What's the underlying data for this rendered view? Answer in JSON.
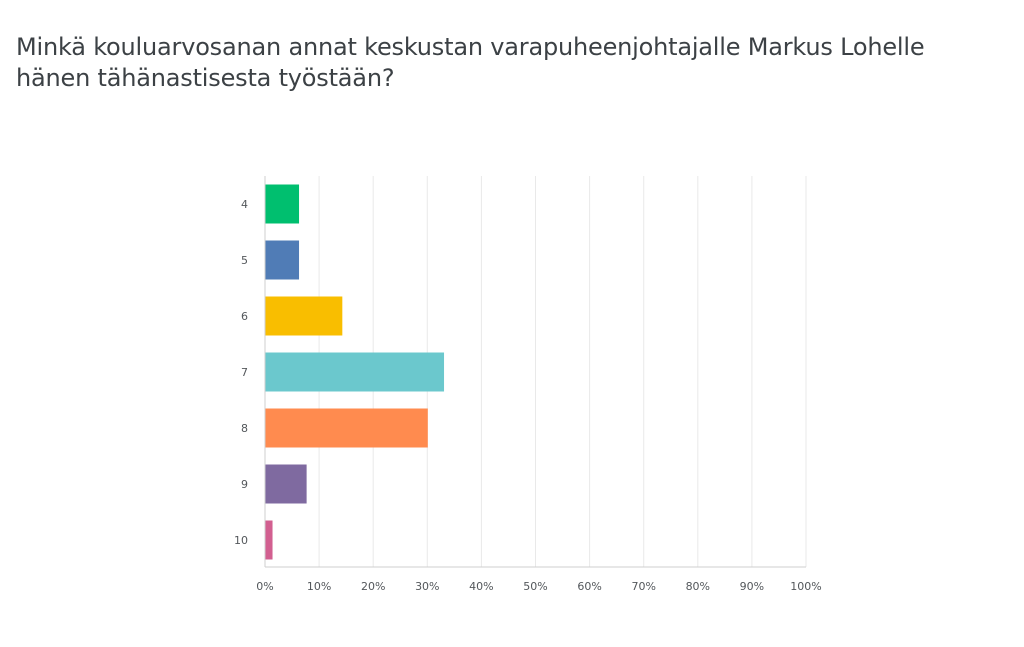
{
  "question": {
    "line1": "Minkä kouluarvosanan annat keskustan varapuheenjohtajalle Markus Lohelle",
    "line2": "hänen tähänastisesta työstään?"
  },
  "chart_data": {
    "type": "bar",
    "orientation": "horizontal",
    "categories": [
      "4",
      "5",
      "6",
      "7",
      "8",
      "9",
      "10"
    ],
    "values": [
      6.2,
      6.2,
      14.2,
      33.0,
      30.0,
      7.6,
      1.3
    ],
    "unit": "%",
    "xlim": [
      0,
      100
    ],
    "x_ticks": [
      "0%",
      "10%",
      "20%",
      "30%",
      "40%",
      "50%",
      "60%",
      "70%",
      "80%",
      "90%",
      "100%"
    ],
    "colors": [
      "#00bf6f",
      "#507cb6",
      "#f9be00",
      "#6bc8cd",
      "#ff8b4f",
      "#7f6aa0",
      "#d25f90"
    ],
    "grid": true,
    "legend": false
  }
}
